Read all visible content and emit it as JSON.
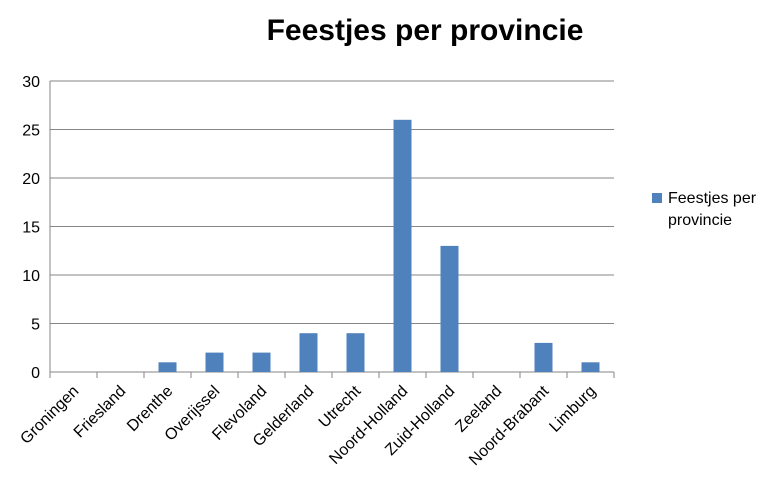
{
  "chart_data": {
    "type": "bar",
    "title": "Feestjes per provincie",
    "xlabel": "",
    "ylabel": "",
    "ylim": [
      0,
      30
    ],
    "yticks": [
      0,
      5,
      10,
      15,
      20,
      25,
      30
    ],
    "grid": true,
    "legend_position": "right",
    "categories": [
      "Groningen",
      "Friesland",
      "Drenthe",
      "Overijssel",
      "Flevoland",
      "Gelderland",
      "Utrecht",
      "Noord-Holland",
      "Zuid-Holland",
      "Zeeland",
      "Noord-Brabant",
      "Limburg"
    ],
    "series": [
      {
        "name": "Feestjes per provincie",
        "color": "#4f81bd",
        "values": [
          0,
          0,
          1,
          2,
          2,
          4,
          4,
          26,
          13,
          0,
          3,
          1
        ]
      }
    ]
  }
}
